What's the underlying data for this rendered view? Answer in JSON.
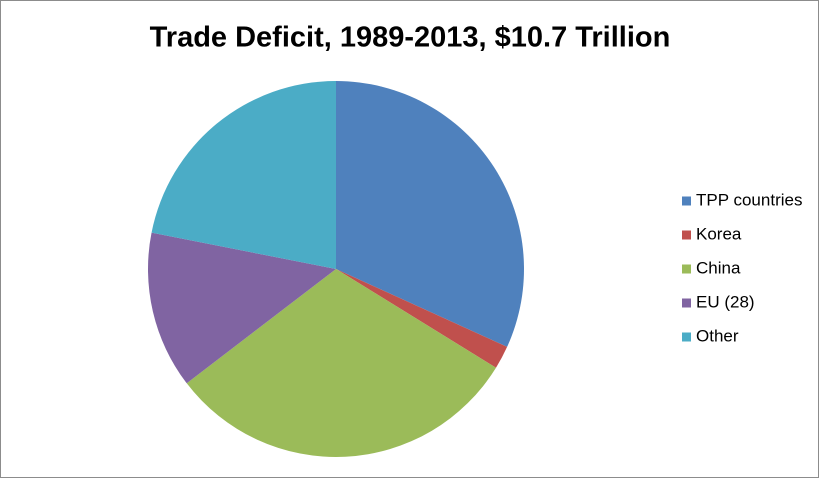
{
  "chart_data": {
    "type": "pie",
    "title": "Trade Deficit, 1989-2013, $10.7 Trillion",
    "categories": [
      "TPP countries",
      "Korea",
      "China",
      "EU (28)",
      "Other"
    ],
    "values": [
      31.8,
      2.0,
      30.8,
      13.5,
      21.9
    ],
    "colors": [
      "#4f81bd",
      "#c0504d",
      "#9bbb59",
      "#8064a2",
      "#4bacc6"
    ],
    "legend": "right"
  }
}
